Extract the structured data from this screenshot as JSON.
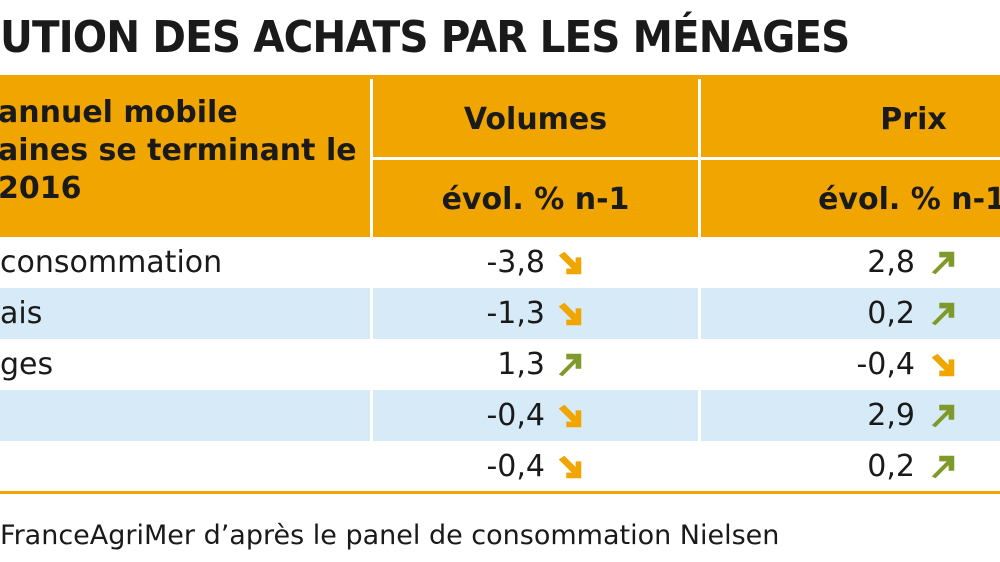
{
  "title": "UTION DES ACHATS PAR LES MÉNAGES",
  "header": {
    "left_lines": [
      "annuel mobile",
      "aines se terminant le",
      "2016"
    ],
    "col1_title": "Volumes",
    "col1_sub": "évol. % n-1",
    "col2_title": "Prix",
    "col2_sub": "évol. % n-1"
  },
  "rows": [
    {
      "label": "consommation",
      "volume": "-3,8",
      "volume_dir": "down",
      "price": "2,8",
      "price_dir": "up"
    },
    {
      "label": "ais",
      "volume": "-1,3",
      "volume_dir": "down",
      "price": "0,2",
      "price_dir": "up"
    },
    {
      "label": "ges",
      "volume": "1,3",
      "volume_dir": "up",
      "price": "-0,4",
      "price_dir": "down"
    },
    {
      "label": "",
      "volume": "-0,4",
      "volume_dir": "down",
      "price": "2,9",
      "price_dir": "up"
    },
    {
      "label": "",
      "volume": "-0,4",
      "volume_dir": "down",
      "price": "0,2",
      "price_dir": "up"
    }
  ],
  "source": "FranceAgriMer d’après le panel de consommation Nielsen",
  "colors": {
    "header": "#f0a500",
    "row_alt": "#d6ebf7",
    "arrow_up": "#7f9a2a",
    "arrow_down": "#f0a500"
  }
}
